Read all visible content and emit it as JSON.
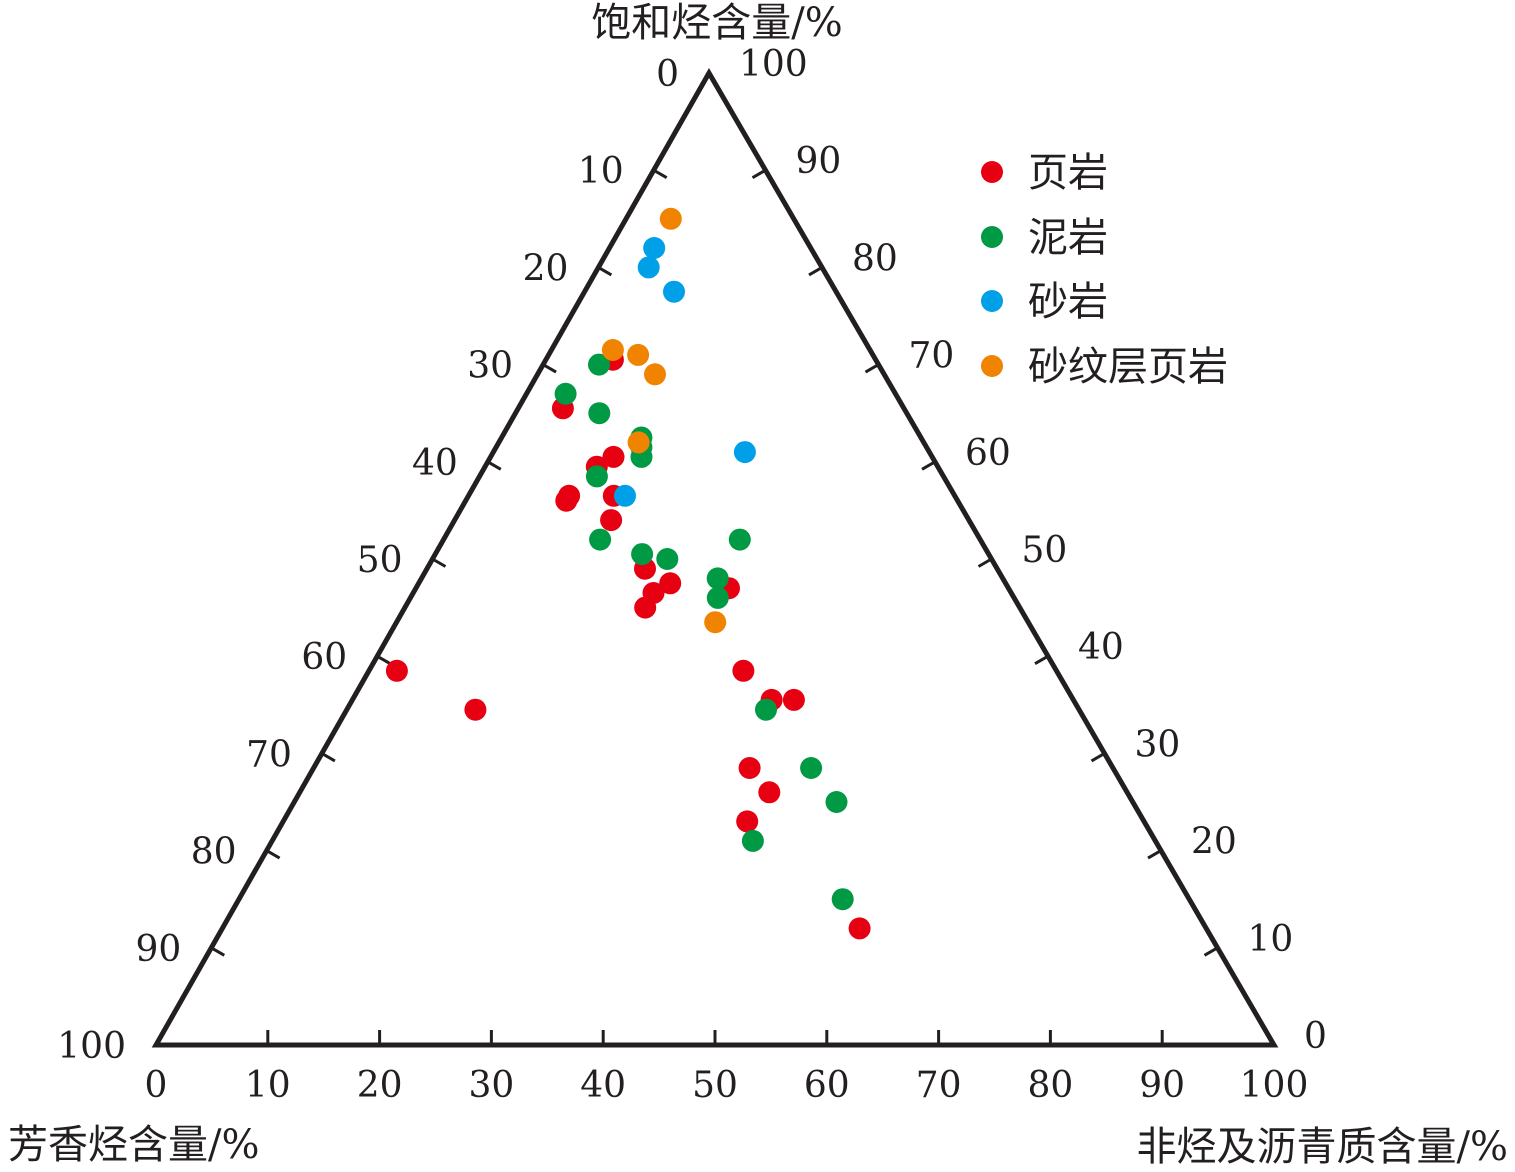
{
  "chart_data": {
    "type": "ternary-scatter",
    "axes": {
      "top": {
        "label": "饱和烃含量/%",
        "range": [
          0,
          100
        ]
      },
      "left": {
        "label": "芳香烃含量/%",
        "range": [
          0,
          100
        ]
      },
      "right": {
        "label": "非烃及沥青质含量/%",
        "range": [
          0,
          100
        ]
      }
    },
    "ticks": [
      "0",
      "10",
      "20",
      "30",
      "40",
      "50",
      "60",
      "70",
      "80",
      "90",
      "100"
    ],
    "legend_placement": "top-right",
    "grid": false,
    "series": [
      {
        "name": "页岩",
        "color": "#e60012",
        "points": [
          [
            70.5,
            23.5,
            6.0
          ],
          [
            65.5,
            30.5,
            4.0
          ],
          [
            38.5,
            59.0,
            2.5
          ],
          [
            34.5,
            54.0,
            11.5
          ],
          [
            60.5,
            28.5,
            11.0
          ],
          [
            59.5,
            30.5,
            10.0
          ],
          [
            56.5,
            30.5,
            13.0
          ],
          [
            56.0,
            35.0,
            9.0
          ],
          [
            56.5,
            34.5,
            9.0
          ],
          [
            54.0,
            32.0,
            14.0
          ],
          [
            49.0,
            31.5,
            19.5
          ],
          [
            47.0,
            25.0,
            28.0
          ],
          [
            45.0,
            33.5,
            21.5
          ],
          [
            46.5,
            32.0,
            21.5
          ],
          [
            47.5,
            30.0,
            22.5
          ],
          [
            38.5,
            28.0,
            33.5
          ],
          [
            35.5,
            27.0,
            37.5
          ],
          [
            23.0,
            35.5,
            41.5
          ],
          [
            28.5,
            32.5,
            39.0
          ],
          [
            26.0,
            32.0,
            42.0
          ],
          [
            12.0,
            31.0,
            57.0
          ],
          [
            35.5,
            25.0,
            39.5
          ]
        ]
      },
      {
        "name": "泥岩",
        "color": "#009944",
        "points": [
          [
            70.0,
            25.0,
            5.0
          ],
          [
            67.0,
            29.5,
            3.5
          ],
          [
            62.5,
            25.0,
            12.5
          ],
          [
            60.5,
            26.0,
            13.5
          ],
          [
            61.5,
            25.5,
            13.0
          ],
          [
            65.0,
            27.5,
            7.5
          ],
          [
            58.5,
            31.0,
            10.5
          ],
          [
            52.0,
            21.5,
            26.5
          ],
          [
            52.0,
            34.0,
            14.0
          ],
          [
            50.0,
            29.0,
            21.0
          ],
          [
            50.5,
            31.0,
            18.5
          ],
          [
            48.0,
            25.5,
            26.5
          ],
          [
            46.0,
            26.5,
            27.5
          ],
          [
            34.5,
            28.0,
            37.5
          ],
          [
            28.5,
            27.0,
            44.5
          ],
          [
            25.0,
            26.5,
            48.5
          ],
          [
            21.0,
            36.0,
            43.0
          ],
          [
            15.0,
            31.0,
            54.0
          ]
        ]
      },
      {
        "name": "砂岩",
        "color": "#00a0e9",
        "points": [
          [
            82.0,
            14.0,
            4.0
          ],
          [
            80.0,
            15.5,
            4.5
          ],
          [
            77.5,
            14.5,
            8.0
          ],
          [
            61.0,
            16.5,
            22.5
          ],
          [
            56.5,
            29.5,
            14.0
          ]
        ]
      },
      {
        "name": "砂纹层页岩",
        "color": "#f08300",
        "points": [
          [
            85.0,
            11.0,
            4.0
          ],
          [
            71.5,
            23.0,
            5.5
          ],
          [
            71.0,
            21.0,
            8.0
          ],
          [
            69.0,
            20.5,
            10.5
          ],
          [
            62.0,
            25.5,
            12.5
          ],
          [
            43.5,
            28.0,
            28.5
          ]
        ]
      }
    ]
  }
}
